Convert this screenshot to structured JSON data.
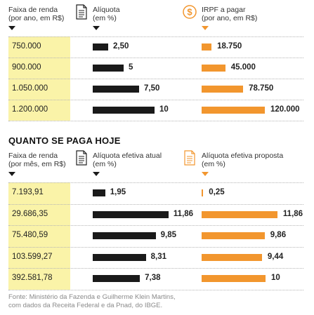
{
  "chart_data": [
    {
      "type": "table",
      "title": "",
      "columns": [
        "Faixa de renda\n(por ano, em R$)",
        "Alíquota\n(em %)",
        "IRPF a pagar\n(por ano, em R$)"
      ],
      "column_icons": [
        "",
        "document-icon",
        "dollar-coin-icon"
      ],
      "rows": [
        {
          "income": "750.000",
          "rate": 2.5,
          "rate_label": "2,50",
          "tax": 18750,
          "tax_label": "18.750"
        },
        {
          "income": "900.000",
          "rate": 5,
          "rate_label": "5",
          "tax": 45000,
          "tax_label": "45.000"
        },
        {
          "income": "1.050.000",
          "rate": 7.5,
          "rate_label": "7,50",
          "tax": 78750,
          "tax_label": "78.750"
        },
        {
          "income": "1.200.000",
          "rate": 10,
          "rate_label": "10",
          "tax": 120000,
          "tax_label": "120.000"
        }
      ]
    },
    {
      "type": "table",
      "title": "QUANTO SE PAGA HOJE",
      "columns": [
        "Faixa de renda\n(por mês, em R$)",
        "Alíquota efetiva atual\n(em %)",
        "Alíquota efetiva proposta\n(em %)"
      ],
      "column_icons": [
        "",
        "document-icon",
        "document-icon"
      ],
      "rows": [
        {
          "income": "7.193,91",
          "current": 1.95,
          "current_label": "1,95",
          "proposed": 0.25,
          "proposed_label": "0,25"
        },
        {
          "income": "29.686,35",
          "current": 11.86,
          "current_label": "11,86",
          "proposed": 11.86,
          "proposed_label": "11,86"
        },
        {
          "income": "75.480,59",
          "current": 9.85,
          "current_label": "9,85",
          "proposed": 9.86,
          "proposed_label": "9,86"
        },
        {
          "income": "103.599,27",
          "current": 8.31,
          "current_label": "8,31",
          "proposed": 9.44,
          "proposed_label": "9,44"
        },
        {
          "income": "392.581,78",
          "current": 7.38,
          "current_label": "7,38",
          "proposed": 10,
          "proposed_label": "10"
        }
      ]
    }
  ],
  "colors": {
    "dark_bar": "#1a1a1a",
    "orange_bar": "#f2962e",
    "income_highlight": "#faf3a8"
  },
  "footer": "Fonte: Ministério da Fazenda e Guilherme Klein Martins,\ncom dados da Receita Federal e da Pnad, do IBGE."
}
